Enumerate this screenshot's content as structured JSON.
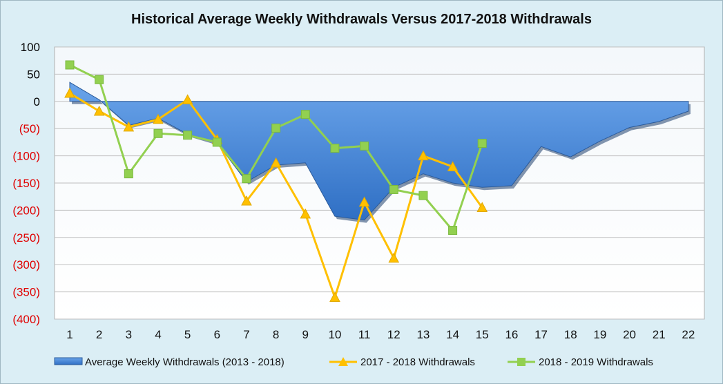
{
  "chart_data": {
    "type": "line",
    "title": "Historical Average Weekly Withdrawals Versus 2017-2018 Withdrawals",
    "xlabel": "",
    "ylabel": "",
    "x": [
      1,
      2,
      3,
      4,
      5,
      6,
      7,
      8,
      9,
      10,
      11,
      12,
      13,
      14,
      15,
      16,
      17,
      18,
      19,
      20,
      21,
      22
    ],
    "x_tick_labels": [
      "1",
      "2",
      "3",
      "4",
      "5",
      "6",
      "7",
      "8",
      "9",
      "10",
      "11",
      "12",
      "13",
      "14",
      "15",
      "16",
      "17",
      "18",
      "19",
      "20",
      "21",
      "22"
    ],
    "ylim": [
      -400,
      100
    ],
    "y_ticks": [
      100,
      50,
      0,
      -50,
      -100,
      -150,
      -200,
      -250,
      -300,
      -350,
      -400
    ],
    "y_tick_labels": [
      "100",
      "50",
      "0",
      "(50)",
      "(100)",
      "(150)",
      "(200)",
      "(250)",
      "(300)",
      "(350)",
      "(400)"
    ],
    "grid": true,
    "legend_position": "bottom",
    "series": [
      {
        "name": "Average Weekly Withdrawals (2013 - 2018)",
        "kind": "area",
        "color": "#4f8fdc",
        "values": [
          35,
          3,
          -44,
          -31,
          -60,
          -76,
          -148,
          -117,
          -113,
          -211,
          -218,
          -158,
          -133,
          -150,
          -158,
          -155,
          -83,
          -102,
          -73,
          -48,
          -37,
          -18
        ]
      },
      {
        "name": "2017 - 2018 Withdrawals",
        "kind": "line",
        "marker": "triangle",
        "color": "#ffc000",
        "values": [
          15,
          -18,
          -47,
          -33,
          3,
          -70,
          -183,
          -113,
          -207,
          -360,
          -185,
          -288,
          -100,
          -120,
          -195,
          null,
          null,
          null,
          null,
          null,
          null,
          null
        ]
      },
      {
        "name": "2018 - 2019 Withdrawals",
        "kind": "line",
        "marker": "square",
        "color": "#92d050",
        "values": [
          67,
          40,
          -133,
          -59,
          -62,
          -75,
          -142,
          -49,
          -24,
          -86,
          -82,
          -162,
          -173,
          -237,
          -77,
          null,
          null,
          null,
          null,
          null,
          null,
          null
        ]
      }
    ],
    "colors": {
      "positive_tick": "#000000",
      "negative_tick": "#e00000",
      "background": "#dbeef5",
      "plot_background": "#ffffff",
      "gridline": "#bfbfbf"
    }
  }
}
